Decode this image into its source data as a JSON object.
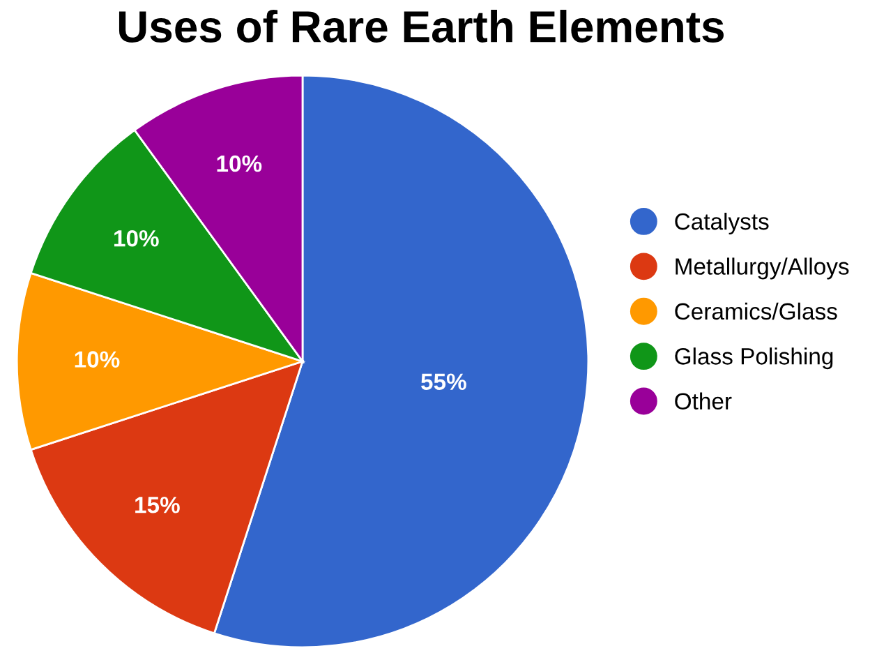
{
  "chart_data": {
    "type": "pie",
    "title": "Uses of Rare Earth Elements",
    "categories": [
      "Catalysts",
      "Metallurgy/Alloys",
      "Ceramics/Glass",
      "Glass Polishing",
      "Other"
    ],
    "values": [
      55,
      15,
      10,
      10,
      10
    ],
    "colors": [
      "#3366cc",
      "#dc3912",
      "#ff9900",
      "#109618",
      "#990099"
    ],
    "value_labels": [
      "55%",
      "15%",
      "10%",
      "10%",
      "10%"
    ],
    "legend": "right"
  }
}
